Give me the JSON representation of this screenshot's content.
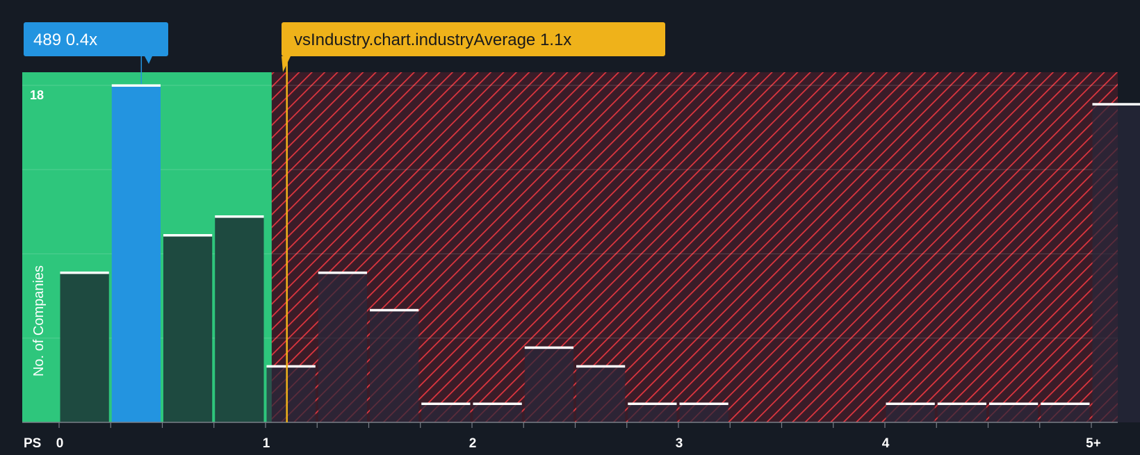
{
  "company_label": {
    "name": "489",
    "value": "0.4x"
  },
  "industry_label": {
    "text": "vsIndustry.chart.industryAverage 1.1x"
  },
  "chart_data": {
    "type": "bar",
    "metric": "PS",
    "ylabel": "No. of Companies",
    "y_tick_labels": [
      "18"
    ],
    "ylim": [
      0,
      18.7
    ],
    "x_tick_labels": [
      "0",
      "1",
      "2",
      "3",
      "4",
      "5+"
    ],
    "x_tick_values": [
      0,
      1,
      2,
      3,
      4,
      5
    ],
    "bin_width": 0.25,
    "bins": [
      {
        "x": 0.0,
        "value": 8
      },
      {
        "x": 0.25,
        "value": 18,
        "highlight": true
      },
      {
        "x": 0.5,
        "value": 10
      },
      {
        "x": 0.75,
        "value": 11
      },
      {
        "x": 1.0,
        "value": 3
      },
      {
        "x": 1.25,
        "value": 8
      },
      {
        "x": 1.5,
        "value": 6
      },
      {
        "x": 1.75,
        "value": 1
      },
      {
        "x": 2.0,
        "value": 1
      },
      {
        "x": 2.25,
        "value": 4
      },
      {
        "x": 2.5,
        "value": 3
      },
      {
        "x": 2.75,
        "value": 1
      },
      {
        "x": 3.0,
        "value": 1
      },
      {
        "x": 4.0,
        "value": 1
      },
      {
        "x": 4.25,
        "value": 1
      },
      {
        "x": 4.5,
        "value": 1
      },
      {
        "x": 4.75,
        "value": 1
      },
      {
        "x": 5.0,
        "value": 17
      }
    ],
    "company_value": 0.4,
    "industry_average": 1.1,
    "grid": true,
    "colors": {
      "background": "#151b24",
      "undervalued_zone": "#2ec67c",
      "overvalued_zone": "#3a1c28",
      "hatch": "#e0363f",
      "bar": "#1e4a40",
      "bar_overvalued": "#2a2a3a",
      "highlight_bar": "#2394e0",
      "bar_cap": "#ffffff",
      "company_label": "#2394e0",
      "industry_label": "#efb21a",
      "industry_line": "#efb21a",
      "text": "#ffffff"
    }
  }
}
